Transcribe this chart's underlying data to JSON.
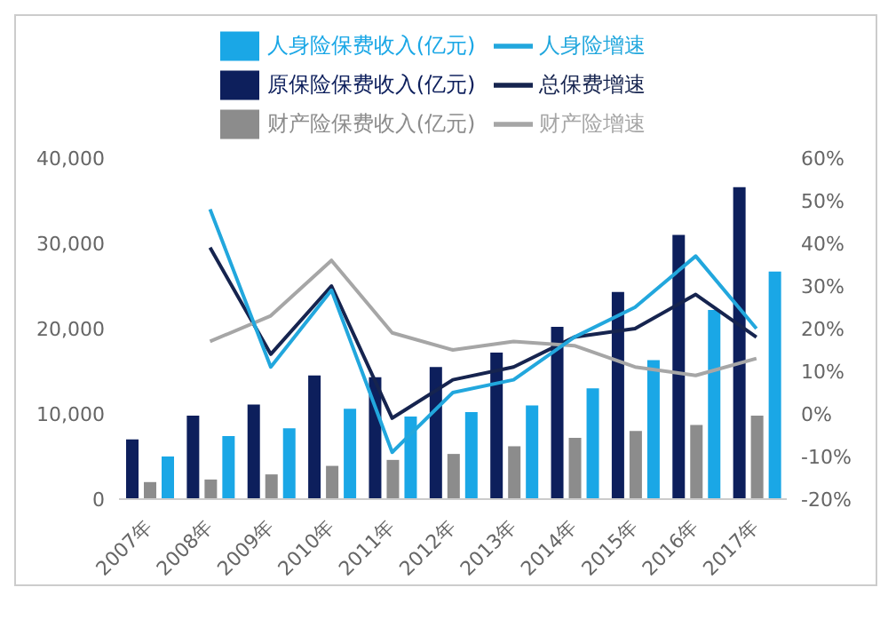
{
  "chart_data": {
    "type": "bar",
    "categories": [
      "2007年",
      "2008年",
      "2009年",
      "2010年",
      "2011年",
      "2012年",
      "2013年",
      "2014年",
      "2015年",
      "2016年",
      "2017年"
    ],
    "series": [
      {
        "name": "原保险保费收入(亿元)",
        "color": "#0d1f5c",
        "values": [
          7000,
          9800,
          11100,
          14500,
          14300,
          15500,
          17200,
          20200,
          24300,
          31000,
          36600
        ]
      },
      {
        "name": "财产险保费收入(亿元)",
        "color": "#8c8c8c",
        "values": [
          2000,
          2300,
          2900,
          3900,
          4600,
          5300,
          6200,
          7200,
          8000,
          8700,
          9800
        ]
      },
      {
        "name": "人身险保费收入(亿元)",
        "color": "#1aa7e6",
        "values": [
          5000,
          7400,
          8300,
          10600,
          9700,
          10200,
          11000,
          13000,
          16300,
          22200,
          26700
        ]
      },
      {
        "name": "总保费增速",
        "type": "line",
        "axis": "y2",
        "color": "#16244f",
        "values": [
          null,
          39,
          14,
          30,
          -1,
          8,
          11,
          18,
          20,
          28,
          18
        ]
      },
      {
        "name": "财产险增速",
        "type": "line",
        "axis": "y2",
        "color": "#a6a6a6",
        "values": [
          null,
          17,
          23,
          36,
          19,
          15,
          17,
          16,
          11,
          9,
          13
        ]
      },
      {
        "name": "人身险增速",
        "type": "line",
        "axis": "y2",
        "color": "#22a7dd",
        "values": [
          null,
          48,
          11,
          29,
          -9,
          5,
          8,
          18,
          25,
          37,
          20
        ]
      }
    ],
    "ylim": [
      0,
      40000
    ],
    "yticks": [
      {
        "value": 0,
        "label": "0"
      },
      {
        "value": 10000,
        "label": "10,000"
      },
      {
        "value": 20000,
        "label": "20,000"
      },
      {
        "value": 30000,
        "label": "30,000"
      },
      {
        "value": 40000,
        "label": "40,000"
      }
    ],
    "y2lim": [
      -20,
      60
    ],
    "y2ticks": [
      {
        "value": -20,
        "label": "-20%"
      },
      {
        "value": -10,
        "label": "-10%"
      },
      {
        "value": 0,
        "label": "0%"
      },
      {
        "value": 10,
        "label": "10%"
      },
      {
        "value": 20,
        "label": "20%"
      },
      {
        "value": 30,
        "label": "30%"
      },
      {
        "value": 40,
        "label": "40%"
      },
      {
        "value": 50,
        "label": "50%"
      },
      {
        "value": 60,
        "label": "60%"
      }
    ],
    "legend": "top",
    "grid": false,
    "marker": "none",
    "line_style": "solid"
  }
}
